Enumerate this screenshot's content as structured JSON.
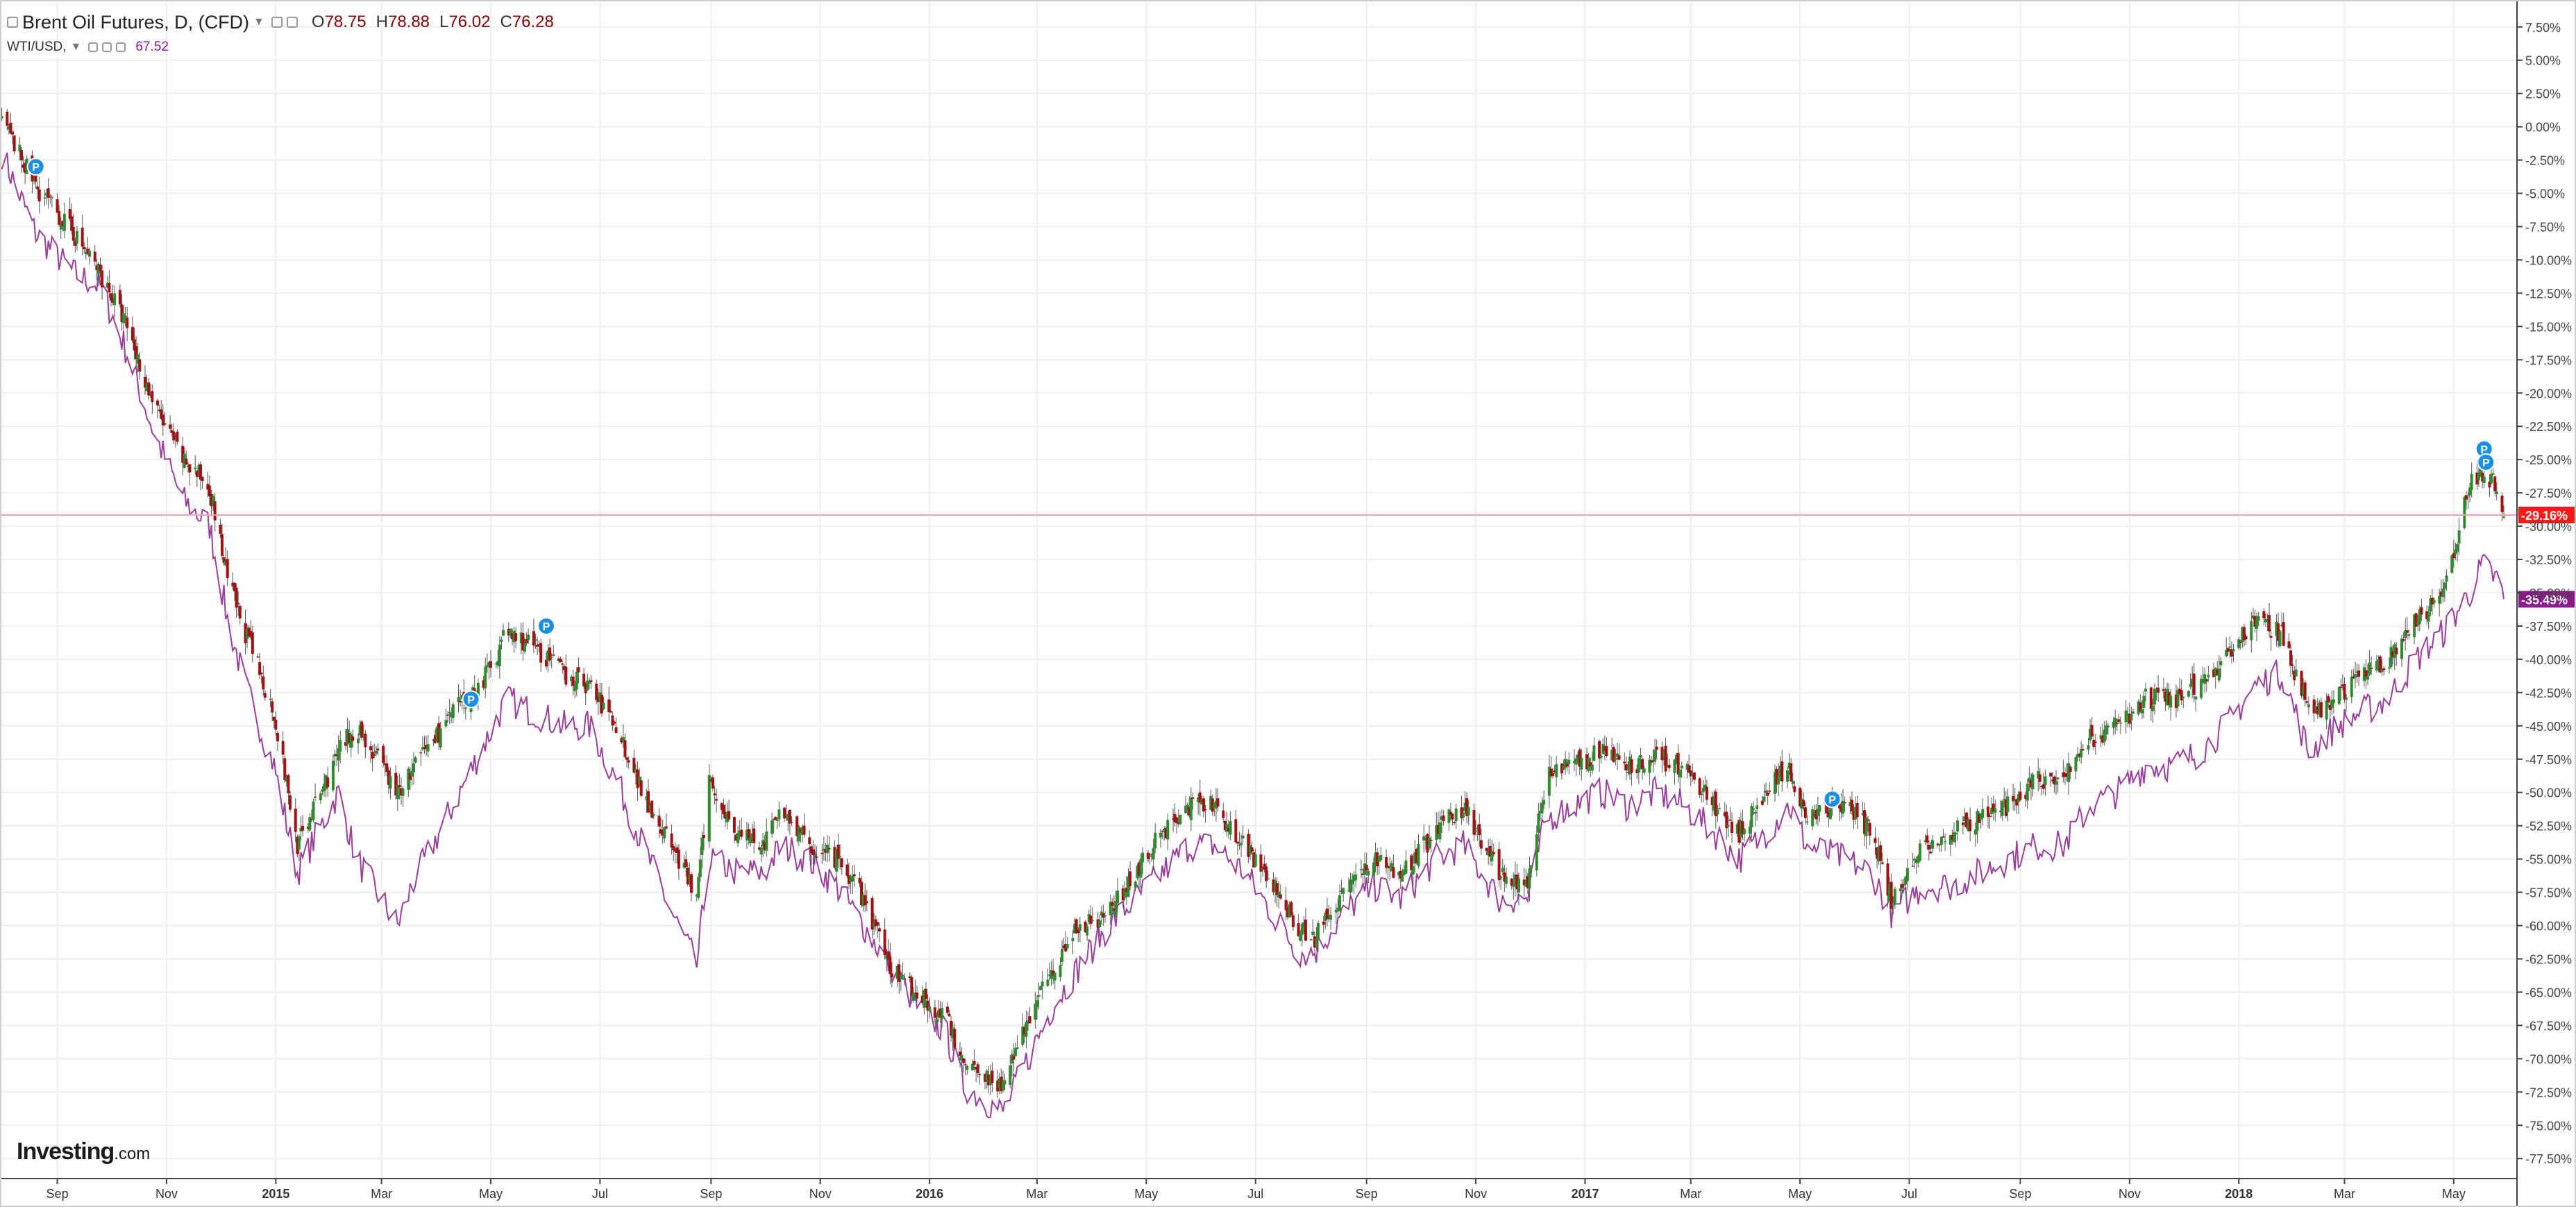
{
  "legend": {
    "symbol": "Brent Oil Futures, D, (CFD)",
    "o_label": "O",
    "o_value": "78.75",
    "h_label": "H",
    "h_value": "78.88",
    "l_label": "L",
    "l_value": "76.02",
    "c_label": "C",
    "c_value": "76.28",
    "compare_symbol": "WTI/USD,",
    "compare_value": "67.52"
  },
  "logo": {
    "brand": "Investing",
    "suffix": ".com"
  },
  "colors": {
    "bull": "#2e8b2e",
    "bear": "#a11212",
    "wick": "#555555",
    "compare_line": "#9b3d9b",
    "last_price": "#ff1a1a",
    "compare_badge": "#8a1a8a",
    "marker": "#1a8fe3",
    "grid": "#efefef"
  },
  "chart_data": {
    "type": "line",
    "title": "Brent Oil Futures, D, (CFD)",
    "xlabel": "",
    "ylabel": "",
    "y_unit": "%",
    "ylim": [
      -79,
      9
    ],
    "xlim": [
      "2014-07-31",
      "2018-06-03"
    ],
    "grid": true,
    "y_ticks": [
      "7.50%",
      "5.00%",
      "2.50%",
      "0.00%",
      "-2.50%",
      "-5.00%",
      "-7.50%",
      "-10.00%",
      "-12.50%",
      "-15.00%",
      "-17.50%",
      "-20.00%",
      "-22.50%",
      "-25.00%",
      "-27.50%",
      "-30.00%",
      "-32.50%",
      "-35.00%",
      "-37.50%",
      "-40.00%",
      "-42.50%",
      "-45.00%",
      "-47.50%",
      "-50.00%",
      "-52.50%",
      "-55.00%",
      "-57.50%",
      "-60.00%",
      "-62.50%",
      "-65.00%",
      "-67.50%",
      "-70.00%",
      "-72.50%",
      "-75.00%",
      "-77.50%"
    ],
    "x_ticks": [
      {
        "date": "2014-09-01",
        "label": "Sep",
        "bold": false
      },
      {
        "date": "2014-11-01",
        "label": "Nov",
        "bold": false
      },
      {
        "date": "2015-01-01",
        "label": "2015",
        "bold": true
      },
      {
        "date": "2015-03-01",
        "label": "Mar",
        "bold": false
      },
      {
        "date": "2015-05-01",
        "label": "May",
        "bold": false
      },
      {
        "date": "2015-07-01",
        "label": "Jul",
        "bold": false
      },
      {
        "date": "2015-09-01",
        "label": "Sep",
        "bold": false
      },
      {
        "date": "2015-11-01",
        "label": "Nov",
        "bold": false
      },
      {
        "date": "2016-01-01",
        "label": "2016",
        "bold": true
      },
      {
        "date": "2016-03-01",
        "label": "Mar",
        "bold": false
      },
      {
        "date": "2016-05-01",
        "label": "May",
        "bold": false
      },
      {
        "date": "2016-07-01",
        "label": "Jul",
        "bold": false
      },
      {
        "date": "2016-09-01",
        "label": "Sep",
        "bold": false
      },
      {
        "date": "2016-11-01",
        "label": "Nov",
        "bold": false
      },
      {
        "date": "2017-01-01",
        "label": "2017",
        "bold": true
      },
      {
        "date": "2017-03-01",
        "label": "Mar",
        "bold": false
      },
      {
        "date": "2017-05-01",
        "label": "May",
        "bold": false
      },
      {
        "date": "2017-07-01",
        "label": "Jul",
        "bold": false
      },
      {
        "date": "2017-09-01",
        "label": "Sep",
        "bold": false
      },
      {
        "date": "2017-11-01",
        "label": "Nov",
        "bold": false
      },
      {
        "date": "2018-01-01",
        "label": "2018",
        "bold": true
      },
      {
        "date": "2018-03-01",
        "label": "Mar",
        "bold": false
      },
      {
        "date": "2018-05-01",
        "label": "May",
        "bold": false
      }
    ],
    "series": [
      {
        "name": "Brent Oil Futures, D, (CFD)",
        "style": "candlestick",
        "x": [
          "2014-08-01",
          "2014-08-20",
          "2014-09-10",
          "2014-09-25",
          "2014-10-10",
          "2014-10-25",
          "2014-11-10",
          "2014-11-25",
          "2014-12-05",
          "2014-12-15",
          "2014-12-31",
          "2015-01-13",
          "2015-02-05",
          "2015-02-15",
          "2015-03-10",
          "2015-03-25",
          "2015-04-10",
          "2015-04-25",
          "2015-05-10",
          "2015-05-25",
          "2015-06-10",
          "2015-06-25",
          "2015-07-10",
          "2015-07-25",
          "2015-08-10",
          "2015-08-24",
          "2015-08-31",
          "2015-09-15",
          "2015-10-01",
          "2015-10-10",
          "2015-10-25",
          "2015-11-10",
          "2015-11-25",
          "2015-12-10",
          "2015-12-25",
          "2016-01-10",
          "2016-01-20",
          "2016-01-30",
          "2016-02-11",
          "2016-02-25",
          "2016-03-10",
          "2016-03-25",
          "2016-04-10",
          "2016-04-25",
          "2016-05-10",
          "2016-05-25",
          "2016-06-08",
          "2016-06-25",
          "2016-07-10",
          "2016-07-25",
          "2016-08-03",
          "2016-08-20",
          "2016-09-05",
          "2016-09-20",
          "2016-10-10",
          "2016-10-25",
          "2016-11-14",
          "2016-11-30",
          "2016-12-10",
          "2016-12-25",
          "2017-01-10",
          "2017-01-25",
          "2017-02-10",
          "2017-02-25",
          "2017-03-14",
          "2017-03-28",
          "2017-04-12",
          "2017-04-25",
          "2017-05-05",
          "2017-05-25",
          "2017-06-10",
          "2017-06-21",
          "2017-07-10",
          "2017-07-25",
          "2017-08-10",
          "2017-08-25",
          "2017-09-10",
          "2017-09-25",
          "2017-10-10",
          "2017-10-25",
          "2017-11-10",
          "2017-11-25",
          "2017-12-10",
          "2017-12-25",
          "2018-01-10",
          "2018-01-25",
          "2018-02-09",
          "2018-02-25",
          "2018-03-10",
          "2018-03-25",
          "2018-04-10",
          "2018-04-25",
          "2018-05-10",
          "2018-05-17",
          "2018-05-25",
          "2018-05-29"
        ],
        "values": [
          0.5,
          -4.5,
          -8,
          -11,
          -15,
          -21,
          -25,
          -27,
          -34,
          -38,
          -44,
          -54,
          -47,
          -45,
          -50,
          -47,
          -44,
          -42,
          -38,
          -39,
          -41,
          -42,
          -45,
          -50,
          -54,
          -58,
          -49,
          -53,
          -54,
          -51,
          -54,
          -55,
          -58,
          -63,
          -65,
          -67,
          -70,
          -71,
          -72,
          -67,
          -63,
          -60,
          -59,
          -56,
          -53,
          -51,
          -51,
          -54,
          -57,
          -60,
          -61,
          -57,
          -55,
          -56,
          -53,
          -51,
          -56,
          -57,
          -49,
          -48,
          -47,
          -48,
          -47.5,
          -48,
          -51,
          -53,
          -50,
          -48,
          -52,
          -51,
          -53,
          -58,
          -54,
          -53,
          -52,
          -51,
          -49,
          -49,
          -46,
          -45,
          -43,
          -43,
          -42,
          -40,
          -37,
          -38,
          -44,
          -43,
          -41,
          -40,
          -37,
          -35,
          -27,
          -26,
          -27,
          -29
        ]
      },
      {
        "name": "WTI/USD,",
        "style": "line",
        "x": [
          "2014-08-01",
          "2014-08-20",
          "2014-09-10",
          "2014-09-25",
          "2014-10-10",
          "2014-10-25",
          "2014-11-10",
          "2014-11-25",
          "2014-12-05",
          "2014-12-15",
          "2014-12-31",
          "2015-01-13",
          "2015-02-05",
          "2015-02-15",
          "2015-03-10",
          "2015-03-18",
          "2015-04-10",
          "2015-04-25",
          "2015-05-10",
          "2015-05-25",
          "2015-06-10",
          "2015-06-25",
          "2015-07-10",
          "2015-07-25",
          "2015-08-10",
          "2015-08-24",
          "2015-08-31",
          "2015-09-15",
          "2015-10-01",
          "2015-10-10",
          "2015-10-25",
          "2015-11-10",
          "2015-11-25",
          "2015-12-10",
          "2015-12-25",
          "2016-01-10",
          "2016-01-20",
          "2016-01-30",
          "2016-02-11",
          "2016-02-25",
          "2016-03-10",
          "2016-03-25",
          "2016-04-10",
          "2016-04-25",
          "2016-05-10",
          "2016-05-25",
          "2016-06-08",
          "2016-06-25",
          "2016-07-10",
          "2016-07-25",
          "2016-08-03",
          "2016-08-20",
          "2016-09-05",
          "2016-09-20",
          "2016-10-10",
          "2016-10-25",
          "2016-11-14",
          "2016-11-30",
          "2016-12-10",
          "2016-12-25",
          "2017-01-10",
          "2017-01-25",
          "2017-02-10",
          "2017-02-25",
          "2017-03-14",
          "2017-03-28",
          "2017-04-12",
          "2017-04-25",
          "2017-05-05",
          "2017-05-25",
          "2017-06-10",
          "2017-06-21",
          "2017-07-10",
          "2017-07-25",
          "2017-08-10",
          "2017-08-25",
          "2017-09-10",
          "2017-09-25",
          "2017-10-10",
          "2017-10-25",
          "2017-11-10",
          "2017-11-25",
          "2017-12-10",
          "2017-12-25",
          "2018-01-10",
          "2018-01-25",
          "2018-02-09",
          "2018-02-25",
          "2018-03-10",
          "2018-03-25",
          "2018-04-10",
          "2018-04-25",
          "2018-05-10",
          "2018-05-17",
          "2018-05-25",
          "2018-05-29"
        ],
        "values": [
          -2,
          -8,
          -11,
          -12,
          -17,
          -23,
          -28,
          -30,
          -37,
          -42,
          -48,
          -56,
          -50,
          -55,
          -60,
          -57,
          -51,
          -47,
          -43,
          -44,
          -45,
          -45,
          -49,
          -54,
          -59,
          -63,
          -55,
          -56,
          -56,
          -54,
          -55,
          -57,
          -60,
          -63,
          -66,
          -68,
          -72,
          -73,
          -74,
          -70,
          -66,
          -63,
          -60,
          -58,
          -56,
          -54,
          -54,
          -56,
          -59,
          -62,
          -62,
          -59,
          -57,
          -58,
          -55,
          -54,
          -58,
          -58,
          -52,
          -51,
          -50,
          -51,
          -50,
          -51,
          -53,
          -55,
          -53,
          -51,
          -54,
          -55,
          -56,
          -59,
          -57,
          -57,
          -56,
          -55,
          -54,
          -54,
          -51,
          -50,
          -48,
          -48,
          -47,
          -45,
          -42,
          -41,
          -47,
          -45,
          -44,
          -43,
          -40,
          -38,
          -35,
          -33,
          -34,
          -35.5
        ]
      }
    ],
    "price_labels": [
      {
        "series": "Brent Oil Futures, D, (CFD)",
        "value": -29.16,
        "label": "-29.16%"
      },
      {
        "series": "WTI/USD,",
        "value": -35.49,
        "label": "-35.49%"
      }
    ],
    "markers": [
      {
        "date": "2014-08-20",
        "value": -3,
        "label": "P"
      },
      {
        "date": "2015-04-20",
        "value": -43,
        "label": "P"
      },
      {
        "date": "2015-06-01",
        "value": -37.5,
        "label": "P"
      },
      {
        "date": "2017-05-19",
        "value": -50.5,
        "label": "P"
      },
      {
        "date": "2018-05-18",
        "value": -24.2,
        "label": "P"
      },
      {
        "date": "2018-05-19",
        "value": -25.2,
        "label": "P"
      }
    ]
  }
}
